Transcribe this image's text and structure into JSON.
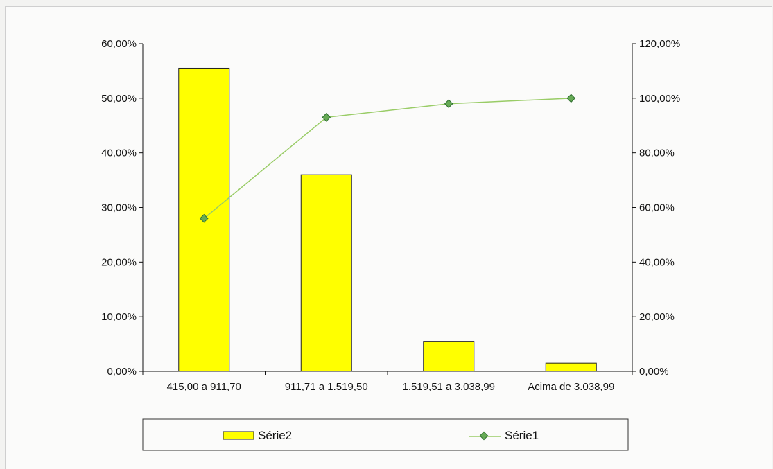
{
  "chart_data": {
    "type": "bar",
    "title": "",
    "xlabel": "",
    "ylabel": "",
    "categories": [
      "415,00 a 911,70",
      "911,71 a 1.519,50",
      "1.519,51 a 3.038,99",
      "Acima de 3.038,99"
    ],
    "series": [
      {
        "name": "Série2",
        "type": "bar",
        "axis": "left",
        "values": [
          55.5,
          36.0,
          5.5,
          1.5
        ]
      },
      {
        "name": "Série1",
        "type": "line",
        "axis": "right",
        "values": [
          56.0,
          93.0,
          98.0,
          100.0
        ]
      }
    ],
    "ylim_left": [
      0,
      60
    ],
    "ylim_right": [
      0,
      120
    ],
    "yticks_left": [
      "0,00%",
      "10,00%",
      "20,00%",
      "30,00%",
      "40,00%",
      "50,00%",
      "60,00%"
    ],
    "yticks_right": [
      "0,00%",
      "20,00%",
      "40,00%",
      "60,00%",
      "80,00%",
      "100,00%",
      "120,00%"
    ],
    "grid": false,
    "legend_position": "bottom",
    "colors": {
      "bar": "#ffff00",
      "line": "#99cc66",
      "marker": "#66aa55",
      "axis": "#111111"
    }
  }
}
